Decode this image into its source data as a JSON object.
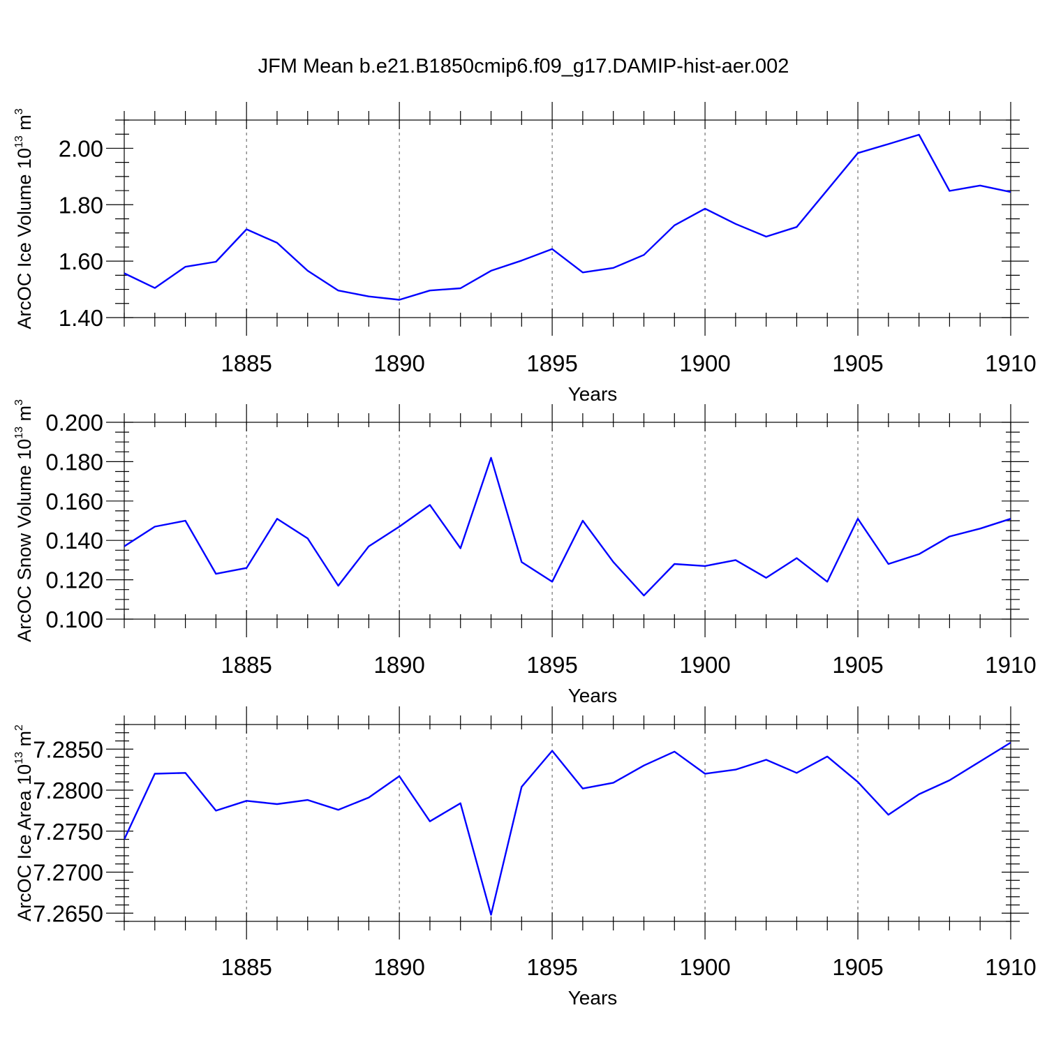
{
  "title": "JFM Mean b.e21.B1850cmip6.f09_g17.DAMIP-hist-aer.002",
  "chart_data": [
    {
      "type": "line",
      "ylabel": "ArcOC Ice Volume 10",
      "ylabel_exp": "13",
      "ylabel_unit": " m",
      "ylabel_unit_exp": "3",
      "xlabel": "Years",
      "xlim": [
        1881,
        1910
      ],
      "ylim": [
        1.4,
        2.1
      ],
      "xticks": [
        1885,
        1890,
        1895,
        1900,
        1905,
        1910
      ],
      "yticks": [
        1.4,
        1.6,
        1.8,
        2.0
      ],
      "ytick_labels": [
        "1.40",
        "1.60",
        "1.80",
        "2.00"
      ],
      "yminor": 0.05,
      "grid_x": true,
      "color": "#0000ff",
      "x": [
        1881,
        1882,
        1883,
        1884,
        1885,
        1886,
        1887,
        1888,
        1889,
        1890,
        1891,
        1892,
        1893,
        1894,
        1895,
        1896,
        1897,
        1898,
        1899,
        1900,
        1901,
        1902,
        1903,
        1904,
        1905,
        1906,
        1907,
        1908,
        1909,
        1910
      ],
      "y": [
        1.557,
        1.505,
        1.58,
        1.598,
        1.713,
        1.665,
        1.566,
        1.496,
        1.475,
        1.463,
        1.496,
        1.504,
        1.566,
        1.602,
        1.643,
        1.56,
        1.576,
        1.622,
        1.727,
        1.786,
        1.732,
        1.687,
        1.721,
        1.852,
        1.983,
        2.015,
        2.048,
        1.849,
        1.868,
        1.845
      ]
    },
    {
      "type": "line",
      "ylabel": "ArcOC Snow Volume 10",
      "ylabel_exp": "13",
      "ylabel_unit": " m",
      "ylabel_unit_exp": "3",
      "xlabel": "Years",
      "xlim": [
        1881,
        1910
      ],
      "ylim": [
        0.1,
        0.2
      ],
      "xticks": [
        1885,
        1890,
        1895,
        1900,
        1905,
        1910
      ],
      "yticks": [
        0.1,
        0.12,
        0.14,
        0.16,
        0.18,
        0.2
      ],
      "ytick_labels": [
        "0.100",
        "0.120",
        "0.140",
        "0.160",
        "0.180",
        "0.200"
      ],
      "yminor": 0.005,
      "grid_x": true,
      "color": "#0000ff",
      "x": [
        1881,
        1882,
        1883,
        1884,
        1885,
        1886,
        1887,
        1888,
        1889,
        1890,
        1891,
        1892,
        1893,
        1894,
        1895,
        1896,
        1897,
        1898,
        1899,
        1900,
        1901,
        1902,
        1903,
        1904,
        1905,
        1906,
        1907,
        1908,
        1909,
        1910
      ],
      "y": [
        0.137,
        0.147,
        0.15,
        0.123,
        0.126,
        0.151,
        0.141,
        0.117,
        0.137,
        0.147,
        0.158,
        0.136,
        0.182,
        0.129,
        0.119,
        0.15,
        0.129,
        0.112,
        0.128,
        0.127,
        0.13,
        0.121,
        0.131,
        0.119,
        0.151,
        0.128,
        0.133,
        0.142,
        0.146,
        0.151
      ]
    },
    {
      "type": "line",
      "ylabel": "ArcOC Ice Area 10",
      "ylabel_exp": "13",
      "ylabel_unit": " m",
      "ylabel_unit_exp": "2",
      "xlabel": "Years",
      "xlim": [
        1881,
        1910
      ],
      "ylim": [
        7.264,
        7.288
      ],
      "xticks": [
        1885,
        1890,
        1895,
        1900,
        1905,
        1910
      ],
      "yticks": [
        7.265,
        7.27,
        7.275,
        7.28,
        7.285
      ],
      "ytick_labels": [
        "7.2650",
        "7.2700",
        "7.2750",
        "7.2800",
        "7.2850"
      ],
      "yminor": 0.001,
      "grid_x": true,
      "color": "#0000ff",
      "x": [
        1881,
        1882,
        1883,
        1884,
        1885,
        1886,
        1887,
        1888,
        1889,
        1890,
        1891,
        1892,
        1893,
        1894,
        1895,
        1896,
        1897,
        1898,
        1899,
        1900,
        1901,
        1902,
        1903,
        1904,
        1905,
        1906,
        1907,
        1908,
        1909,
        1910
      ],
      "y": [
        7.274,
        7.282,
        7.2821,
        7.2775,
        7.2787,
        7.2783,
        7.2788,
        7.2776,
        7.2791,
        7.2817,
        7.2762,
        7.2784,
        7.2648,
        7.2804,
        7.2848,
        7.2802,
        7.2809,
        7.283,
        7.2847,
        7.282,
        7.2825,
        7.2837,
        7.2821,
        7.2841,
        7.281,
        7.277,
        7.2795,
        7.2812,
        7.2835,
        7.2858
      ]
    }
  ]
}
